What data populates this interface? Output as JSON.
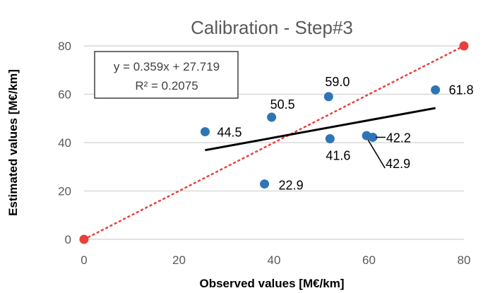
{
  "chart_data": {
    "type": "scatter",
    "title": "Calibration - Step#3",
    "xlabel": "Observed values [M€/km]",
    "ylabel": "Estimated values [M€/km]",
    "xlim": [
      0,
      80
    ],
    "ylim": [
      0,
      80
    ],
    "xticks": [
      "0",
      "20",
      "40",
      "60",
      "80"
    ],
    "yticks": [
      "0",
      "20",
      "40",
      "60",
      "80"
    ],
    "grid": "horizontal",
    "colors": {
      "points": "#2E75B6",
      "identity": "#E8403A",
      "trend": "#000000",
      "grid": "#D9D9D9",
      "axis_text": "#595959"
    },
    "series": [
      {
        "values": [
          {
            "x": 25.5,
            "y": 44.5,
            "label": "44.5"
          },
          {
            "x": 38.0,
            "y": 22.9,
            "label": "22.9"
          },
          {
            "x": 39.5,
            "y": 50.5,
            "label": "50.5"
          },
          {
            "x": 51.5,
            "y": 59.0,
            "label": "59.0"
          },
          {
            "x": 51.8,
            "y": 41.6,
            "label": "41.6"
          },
          {
            "x": 59.5,
            "y": 42.9,
            "label": "42.9"
          },
          {
            "x": 60.8,
            "y": 42.2,
            "label": "42.2"
          },
          {
            "x": 74.0,
            "y": 61.8,
            "label": "61.8"
          }
        ]
      }
    ],
    "identity_line": {
      "x": [
        0,
        80
      ],
      "y": [
        0,
        80
      ],
      "style": "dotted"
    },
    "trendline": {
      "slope": 0.359,
      "intercept": 27.719,
      "x_range": [
        25.5,
        74.0
      ]
    },
    "equation_box": {
      "line1": "y = 0.359x + 27.719",
      "line2": "R² = 0.2075"
    }
  }
}
